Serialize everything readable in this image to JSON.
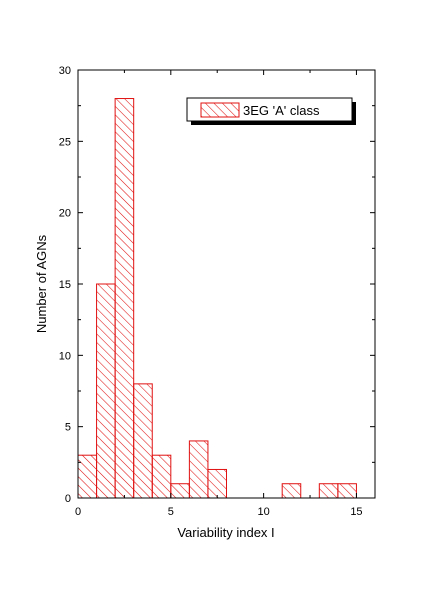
{
  "chart_data": {
    "type": "bar",
    "subtype": "histogram",
    "xlabel": "Variability index I",
    "ylabel": "Number of AGNs",
    "xlim": [
      0,
      16
    ],
    "ylim": [
      0,
      30
    ],
    "xticks": [
      0,
      5,
      10,
      15
    ],
    "yticks": [
      0,
      5,
      10,
      15,
      20,
      25,
      30
    ],
    "bin_width": 1,
    "legend_position": "top-right",
    "series": [
      {
        "name": "3EG 'A' class",
        "color": "#e01010",
        "fill": "diagonal-hatch",
        "bins": [
          {
            "x0": 0,
            "x1": 1,
            "count": 3
          },
          {
            "x0": 1,
            "x1": 2,
            "count": 15
          },
          {
            "x0": 2,
            "x1": 3,
            "count": 28
          },
          {
            "x0": 3,
            "x1": 4,
            "count": 8
          },
          {
            "x0": 4,
            "x1": 5,
            "count": 3
          },
          {
            "x0": 5,
            "x1": 6,
            "count": 1
          },
          {
            "x0": 6,
            "x1": 7,
            "count": 4
          },
          {
            "x0": 7,
            "x1": 8,
            "count": 2
          },
          {
            "x0": 11,
            "x1": 12,
            "count": 1
          },
          {
            "x0": 13,
            "x1": 14,
            "count": 1
          },
          {
            "x0": 14,
            "x1": 15,
            "count": 1
          }
        ]
      }
    ]
  }
}
